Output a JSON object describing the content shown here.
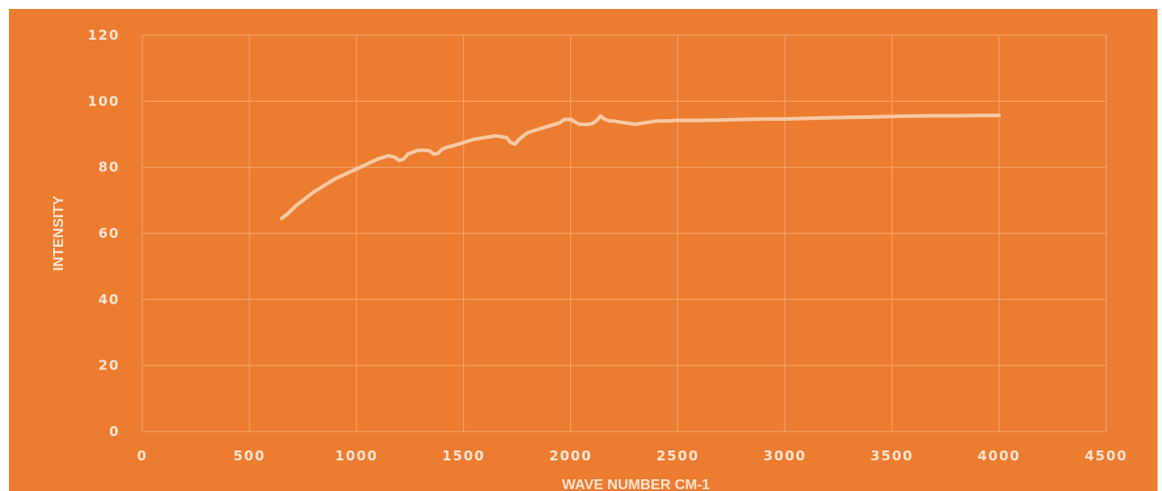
{
  "chart_data": {
    "type": "line",
    "title": "",
    "xlabel": "WAVE NUMBER CM-1",
    "ylabel": "INTENSITY",
    "xlim": [
      0,
      4500
    ],
    "ylim": [
      0,
      120
    ],
    "xticks": [
      0,
      500,
      1000,
      1500,
      2000,
      2500,
      3000,
      3500,
      4000,
      4500
    ],
    "yticks": [
      0,
      20,
      40,
      60,
      80,
      100,
      120
    ],
    "grid": true,
    "legend": "none",
    "colors": {
      "background": "#EC7C30",
      "line": "#F6C9A4",
      "grid": "#F3A76F",
      "text": "#FCE4D2"
    },
    "series": [
      {
        "x": [
          650,
          680,
          720,
          760,
          800,
          850,
          900,
          950,
          1000,
          1050,
          1100,
          1150,
          1180,
          1200,
          1220,
          1240,
          1260,
          1280,
          1300,
          1340,
          1360,
          1380,
          1400,
          1420,
          1450,
          1500,
          1550,
          1600,
          1650,
          1700,
          1720,
          1740,
          1760,
          1780,
          1800,
          1850,
          1900,
          1950,
          1970,
          2000,
          2040,
          2060,
          2080,
          2100,
          2120,
          2140,
          2160,
          2180,
          2200,
          2250,
          2300,
          2320,
          2350,
          2400,
          2450,
          2500,
          2600,
          2700,
          2800,
          2900,
          3000,
          3100,
          3200,
          3300,
          3400,
          3500,
          3600,
          3700,
          3800,
          3900,
          4000
        ],
        "y": [
          64.5,
          66,
          68.5,
          70.5,
          72.5,
          74.5,
          76.5,
          78,
          79.5,
          81,
          82.5,
          83.5,
          83,
          82,
          82.5,
          84,
          84.5,
          85,
          85.2,
          85,
          84,
          84.2,
          85.5,
          86,
          86.5,
          87.5,
          88.5,
          89,
          89.5,
          89,
          87.5,
          87,
          88.5,
          89.5,
          90.5,
          91.5,
          92.5,
          93.5,
          94.5,
          94.5,
          93,
          93,
          93,
          93.2,
          94,
          95.5,
          94.5,
          94,
          94,
          93.5,
          93,
          93.2,
          93.5,
          94,
          94,
          94.2,
          94.2,
          94.3,
          94.5,
          94.6,
          94.6,
          94.8,
          95,
          95.1,
          95.2,
          95.4,
          95.5,
          95.6,
          95.6,
          95.7,
          95.7
        ]
      }
    ]
  }
}
